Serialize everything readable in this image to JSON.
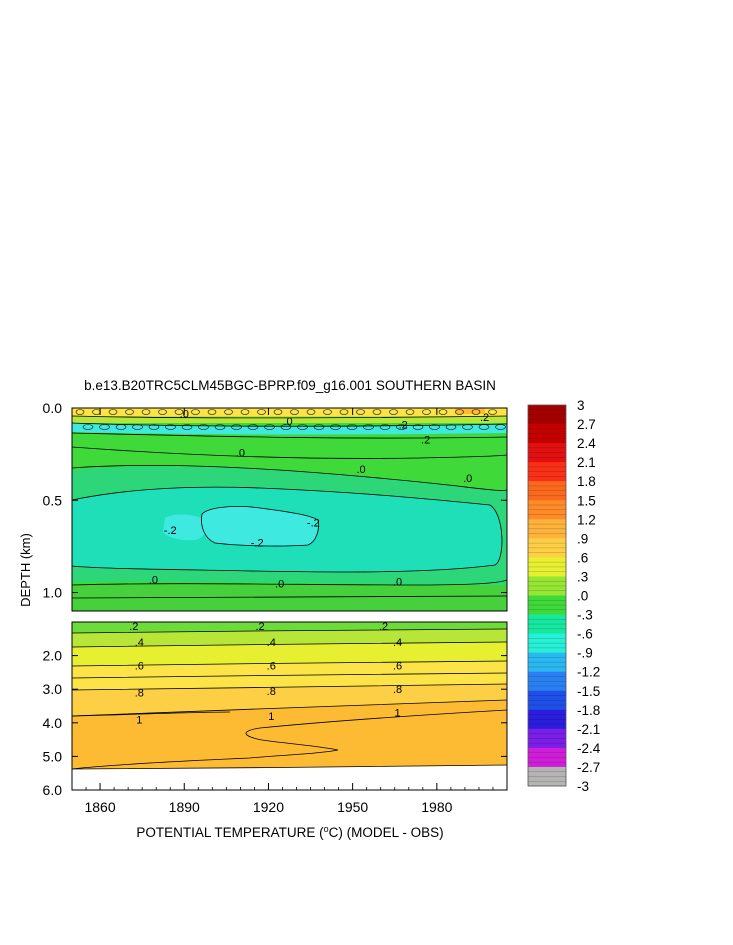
{
  "chart_data": {
    "type": "heatmap",
    "title": "b.e13.B20TRC5CLM45BGC-BPRP.f09_g16.001 SOUTHERN BASIN",
    "xlabel_pre": "POTENTIAL TEMPERATURE (",
    "xlabel_sup": "o",
    "xlabel_post": "C) (MODEL - OBS)",
    "ylabel": "DEPTH (km)",
    "xlim": [
      1850,
      2005
    ],
    "x_ticks": [
      1860,
      1890,
      1920,
      1950,
      1980
    ],
    "upper_panel": {
      "ylim": [
        0.0,
        1.1
      ],
      "y_ticks": [
        "0.0",
        "0.5",
        "1.0"
      ],
      "y_tick_values": [
        0.0,
        0.5,
        1.0
      ]
    },
    "lower_panel": {
      "ylim": [
        1.0,
        6.0
      ],
      "y_ticks": [
        "2.0",
        "3.0",
        "4.0",
        "5.0",
        "6.0"
      ],
      "y_tick_values": [
        2.0,
        3.0,
        4.0,
        5.0,
        6.0
      ]
    },
    "colorbar": {
      "levels": [
        3,
        2.7,
        2.4,
        2.1,
        1.8,
        1.5,
        1.2,
        0.9,
        0.6,
        0.3,
        0.0,
        -0.3,
        -0.6,
        -0.9,
        -1.2,
        -1.5,
        -1.8,
        -2.1,
        -2.4,
        -2.7,
        -3
      ],
      "labels": [
        "3",
        "2.7",
        "2.4",
        "2.1",
        "1.8",
        "1.5",
        "1.2",
        ".9",
        ".6",
        ".3",
        ".0",
        "-.3",
        "-.6",
        "-.9",
        "-1.2",
        "-1.5",
        "-1.8",
        "-2.1",
        "-2.4",
        "-2.7",
        "-3"
      ]
    },
    "upper_contours": [
      {
        "label": ".0",
        "x": 1890,
        "depth": 0.03
      },
      {
        "label": ".0",
        "x": 1927,
        "depth": 0.07
      },
      {
        "label": ".2",
        "x": 1968,
        "depth": 0.09
      },
      {
        "label": ".2",
        "x": 1976,
        "depth": 0.17
      },
      {
        "label": ".2",
        "x": 1997,
        "depth": 0.05
      },
      {
        "label": ".0",
        "x": 1910,
        "depth": 0.24
      },
      {
        "label": ".0",
        "x": 1953,
        "depth": 0.33
      },
      {
        "label": ".0",
        "x": 1991,
        "depth": 0.38
      },
      {
        "label": "-.2",
        "x": 1885,
        "depth": 0.66
      },
      {
        "label": "-.2",
        "x": 1916,
        "depth": 0.73
      },
      {
        "label": "-.2",
        "x": 1936,
        "depth": 0.62
      },
      {
        "label": ".0",
        "x": 1879,
        "depth": 0.93
      },
      {
        "label": ".0",
        "x": 1924,
        "depth": 0.95
      },
      {
        "label": ".0",
        "x": 1966,
        "depth": 0.94
      }
    ],
    "lower_contours": [
      {
        "label": ".2",
        "x": 1872,
        "depth": 1.0
      },
      {
        "label": ".2",
        "x": 1917,
        "depth": 1.0
      },
      {
        "label": ".2",
        "x": 1961,
        "depth": 1.0
      },
      {
        "label": ".4",
        "x": 1874,
        "depth": 1.6
      },
      {
        "label": ".4",
        "x": 1921,
        "depth": 1.6
      },
      {
        "label": ".4",
        "x": 1966,
        "depth": 1.6
      },
      {
        "label": ".6",
        "x": 1874,
        "depth": 2.3
      },
      {
        "label": ".6",
        "x": 1921,
        "depth": 2.3
      },
      {
        "label": ".6",
        "x": 1966,
        "depth": 2.3
      },
      {
        "label": ".8",
        "x": 1874,
        "depth": 3.1
      },
      {
        "label": ".8",
        "x": 1921,
        "depth": 3.05
      },
      {
        "label": ".8",
        "x": 1966,
        "depth": 3.0
      },
      {
        "label": "1",
        "x": 1874,
        "depth": 3.9
      },
      {
        "label": "1",
        "x": 1921,
        "depth": 3.8
      },
      {
        "label": "1",
        "x": 1966,
        "depth": 3.7
      }
    ],
    "colors": {
      "c3": "#a50000",
      "c27": "#c40000",
      "c24": "#e21010",
      "c21": "#f83018",
      "c18": "#fb6a1c",
      "c15": "#fd8c28",
      "c12": "#fdb23c",
      "c09": "#fdcf45",
      "c06": "#e6f030",
      "c03": "#96e632",
      "c00": "#3fd93a",
      "cn03": "#16e8a0",
      "cn06": "#27f0d6",
      "cn09": "#29b8f0",
      "cn12": "#2a80f3",
      "cn15": "#1e50e8",
      "cn18": "#2a1edc",
      "cn21": "#7a1ee8",
      "cn24": "#d01ed8",
      "cn27": "#b4b4b4",
      "cn3": "#727272",
      "band_orange": "#fdbb33",
      "band_yellow": "#fce448",
      "band_lime": "#b8e638",
      "band_green": "#6cdc3a",
      "deep_green": "#46d03c",
      "mid_green": "#2ed67a",
      "aqua": "#1fdfb8",
      "cyan": "#3ee9e0"
    }
  }
}
